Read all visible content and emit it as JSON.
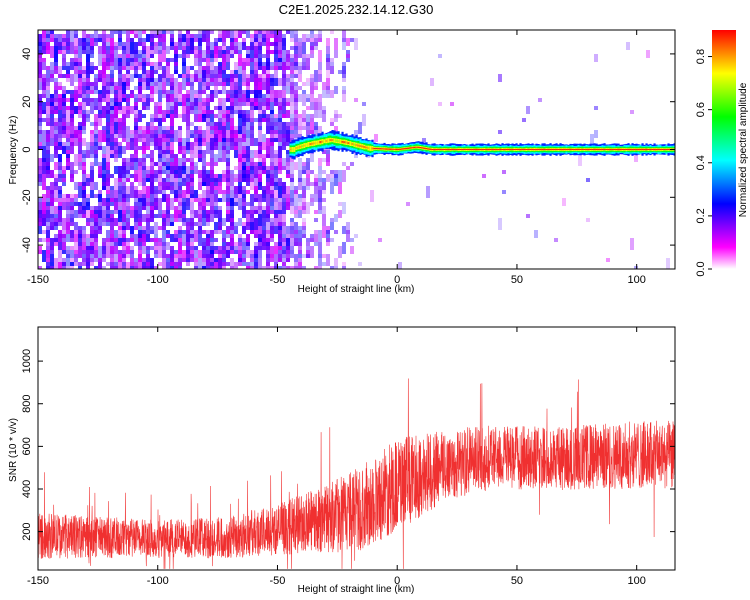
{
  "title": "C2E1.2025.232.14.12.G30",
  "chart_data": [
    {
      "type": "heatmap",
      "xlabel": "Height of straight line (km)",
      "ylabel": "Frequency (Hz)",
      "xlim": [
        -150,
        116
      ],
      "ylim": [
        -50,
        50
      ],
      "xticks": [
        -150,
        -100,
        -50,
        0,
        50,
        100
      ],
      "yticks": [
        -40,
        -20,
        0,
        20,
        40
      ],
      "colorbar": {
        "label": "Normalized spectral amplitude",
        "range": [
          0,
          0.9
        ],
        "ticks": [
          0.0,
          0.2,
          0.4,
          0.6,
          0.8
        ],
        "tick_labels": [
          "0.0",
          "0.2",
          "0.4",
          "0.6",
          "0.8"
        ],
        "colormap": [
          "#ffffff",
          "#ff00ff",
          "#8000ff",
          "#0000ff",
          "#0080ff",
          "#00ffff",
          "#00ff80",
          "#00ff00",
          "#80ff00",
          "#ffff00",
          "#ff8000",
          "#ff0000"
        ]
      },
      "features": {
        "noise_region": {
          "x_range": [
            -150,
            -15
          ],
          "dense_until": -45,
          "dominant_color": "#7a1ef0",
          "amplitude": [
            0.1,
            0.25
          ]
        },
        "carrier_line": {
          "x_range": [
            -45,
            116
          ],
          "frequency": 0,
          "amplitude_peak": 0.9
        },
        "carrier_wiggle": [
          {
            "x": -43,
            "f": 0.5
          },
          {
            "x": -38,
            "f": 2
          },
          {
            "x": -33,
            "f": 3
          },
          {
            "x": -28,
            "f": 4
          },
          {
            "x": -22,
            "f": 3
          },
          {
            "x": -16,
            "f": 1.5
          },
          {
            "x": -12,
            "f": 0.5
          },
          {
            "x": 0,
            "f": 0
          },
          {
            "x": 8,
            "f": 1
          },
          {
            "x": 14,
            "f": 0
          },
          {
            "x": 116,
            "f": 0
          }
        ]
      }
    },
    {
      "type": "line",
      "xlabel": "Height of straight line (km)",
      "ylabel": "SNR (10 * v/v)",
      "xlim": [
        -150,
        116
      ],
      "ylim": [
        20,
        1160
      ],
      "xticks": [
        -150,
        -100,
        -50,
        0,
        50,
        100
      ],
      "yticks": [
        200,
        400,
        600,
        800,
        1000
      ],
      "color": "#f03030",
      "envelope": [
        {
          "x": -150,
          "mean": 180,
          "amp": 110
        },
        {
          "x": -130,
          "mean": 175,
          "amp": 100
        },
        {
          "x": -100,
          "mean": 165,
          "amp": 90
        },
        {
          "x": -70,
          "mean": 175,
          "amp": 100
        },
        {
          "x": -50,
          "mean": 210,
          "amp": 120
        },
        {
          "x": -30,
          "mean": 260,
          "amp": 160
        },
        {
          "x": -15,
          "mean": 310,
          "amp": 200
        },
        {
          "x": 0,
          "mean": 420,
          "amp": 220
        },
        {
          "x": 20,
          "mean": 510,
          "amp": 170
        },
        {
          "x": 40,
          "mean": 550,
          "amp": 150
        },
        {
          "x": 70,
          "mean": 545,
          "amp": 150
        },
        {
          "x": 100,
          "mean": 560,
          "amp": 160
        },
        {
          "x": 116,
          "mean": 560,
          "amp": 160
        }
      ]
    }
  ]
}
